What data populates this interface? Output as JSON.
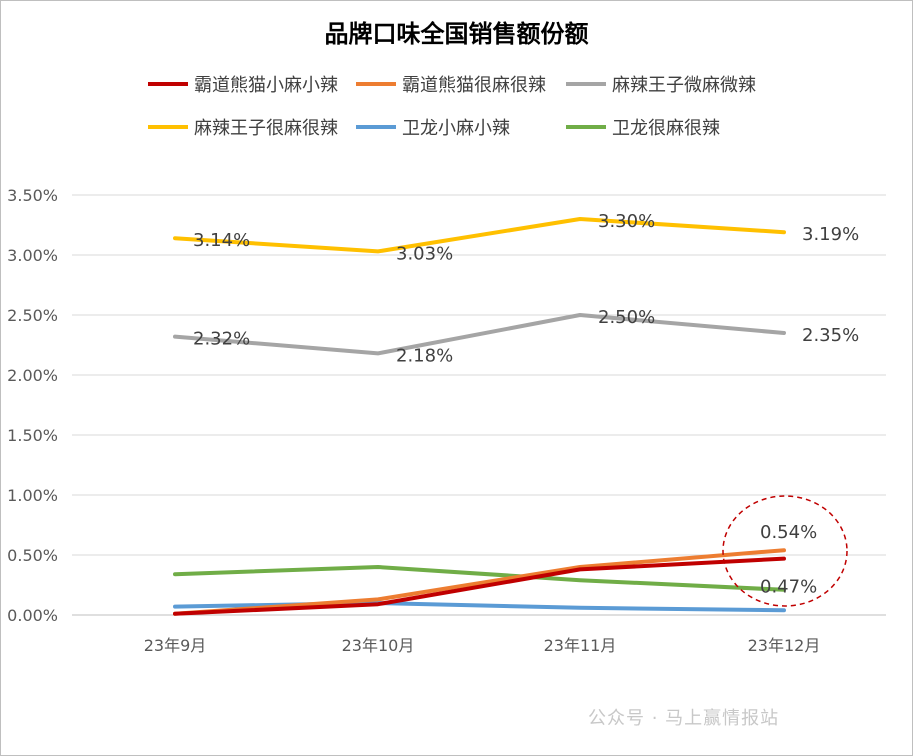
{
  "chart_data": {
    "type": "line",
    "title": "品牌口味全国销售额份额",
    "categories": [
      "23年9月",
      "23年10月",
      "23年11月",
      "23年12月"
    ],
    "ylim": [
      0,
      3.5
    ],
    "yticks": [
      "0.00%",
      "0.50%",
      "1.00%",
      "1.50%",
      "2.00%",
      "2.50%",
      "3.00%",
      "3.50%"
    ],
    "ytick_values": [
      0,
      0.5,
      1.0,
      1.5,
      2.0,
      2.5,
      3.0,
      3.5
    ],
    "grid": true,
    "legend_position": "top",
    "series": [
      {
        "name": "霸道熊猫小麻小辣",
        "color": "#c00000",
        "values": [
          0.01,
          0.09,
          0.38,
          0.47
        ],
        "labels": [
          "",
          "",
          "",
          "0.47%"
        ]
      },
      {
        "name": "霸道熊猫很麻很辣",
        "color": "#ed7d31",
        "values": [
          0.01,
          0.13,
          0.4,
          0.54
        ],
        "labels": [
          "",
          "",
          "",
          "0.54%"
        ]
      },
      {
        "name": "麻辣王子微麻微辣",
        "color": "#a5a5a5",
        "values": [
          2.32,
          2.18,
          2.5,
          2.35
        ],
        "labels": [
          "2.32%",
          "2.18%",
          "2.50%",
          "2.35%"
        ]
      },
      {
        "name": "麻辣王子很麻很辣",
        "color": "#ffc000",
        "values": [
          3.14,
          3.03,
          3.3,
          3.19
        ],
        "labels": [
          "3.14%",
          "3.03%",
          "3.30%",
          "3.19%"
        ]
      },
      {
        "name": "卫龙小麻小辣",
        "color": "#5b9bd5",
        "values": [
          0.07,
          0.1,
          0.06,
          0.04
        ],
        "labels": [
          "",
          "",
          "",
          ""
        ]
      },
      {
        "name": "卫龙很麻很辣",
        "color": "#70ad47",
        "values": [
          0.34,
          0.4,
          0.29,
          0.21
        ],
        "labels": [
          "",
          "",
          "",
          ""
        ]
      }
    ],
    "annotation": {
      "shape": "dashed-ellipse",
      "color": "#c00000",
      "around": "23年12月 labels"
    }
  },
  "watermark": "公众号 · 马上赢情报站"
}
